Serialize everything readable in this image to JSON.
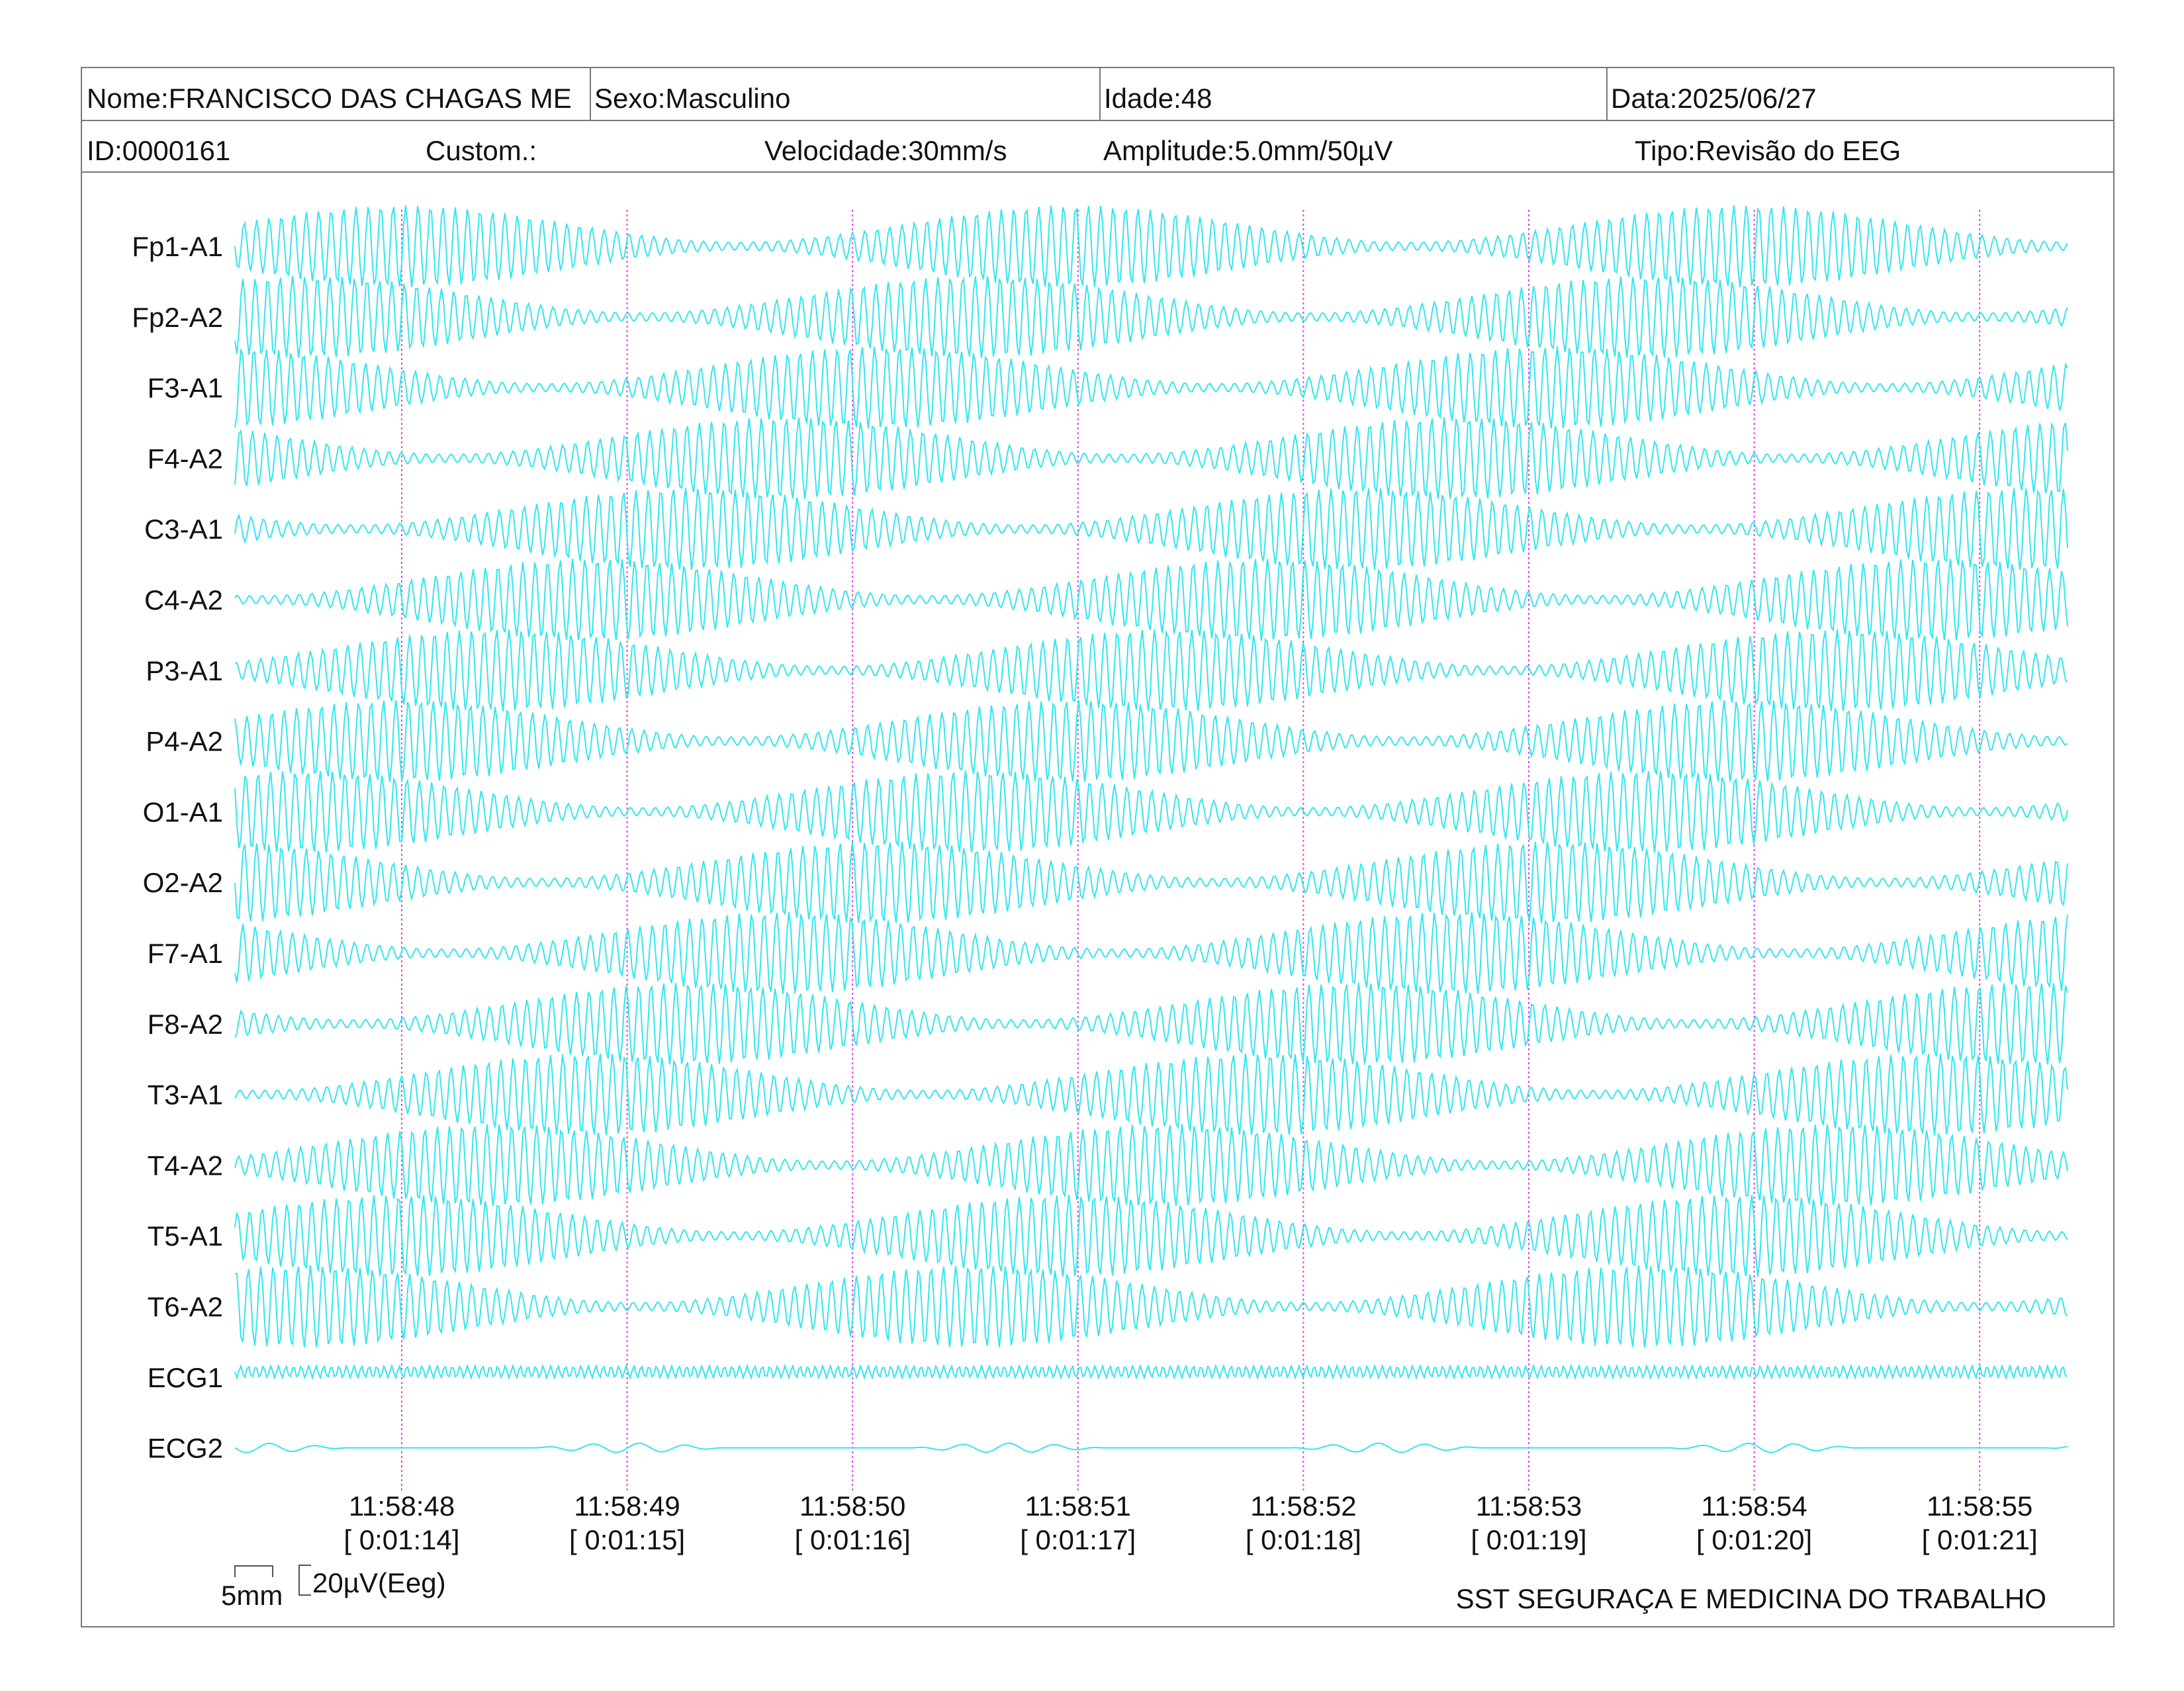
{
  "header": {
    "name": "Nome:FRANCISCO DAS CHAGAS ME",
    "sex": "Sexo:Masculino",
    "age": "Idade:48",
    "date": "Data:2025/06/27",
    "id": "ID:0000161",
    "custom": "Custom.:",
    "speed": "Velocidade:30mm/s",
    "amplitude": "Amplitude:5.0mm/50µV",
    "type": "Tipo:Revisão do EEG"
  },
  "channels": [
    "Fp1-A1",
    "Fp2-A2",
    "F3-A1",
    "F4-A2",
    "C3-A1",
    "C4-A2",
    "P3-A1",
    "P4-A2",
    "O1-A1",
    "O2-A2",
    "F7-A1",
    "F8-A2",
    "T3-A1",
    "T4-A2",
    "T5-A1",
    "T6-A2",
    "ECG1",
    "ECG2"
  ],
  "time_marks": [
    {
      "time": "11:58:48",
      "elapsed": "[ 0:01:14]"
    },
    {
      "time": "11:58:49",
      "elapsed": "[ 0:01:15]"
    },
    {
      "time": "11:58:50",
      "elapsed": "[ 0:01:16]"
    },
    {
      "time": "11:58:51",
      "elapsed": "[ 0:01:17]"
    },
    {
      "time": "11:58:52",
      "elapsed": "[ 0:01:18]"
    },
    {
      "time": "11:58:53",
      "elapsed": "[ 0:01:19]"
    },
    {
      "time": "11:58:54",
      "elapsed": "[ 0:01:20]"
    },
    {
      "time": "11:58:55",
      "elapsed": "[ 0:01:21]"
    }
  ],
  "scale": {
    "x": "5mm",
    "y": "20µV(Eeg)"
  },
  "footer": "SST SEGURAÇA E MEDICINA DO TRABALHO"
}
